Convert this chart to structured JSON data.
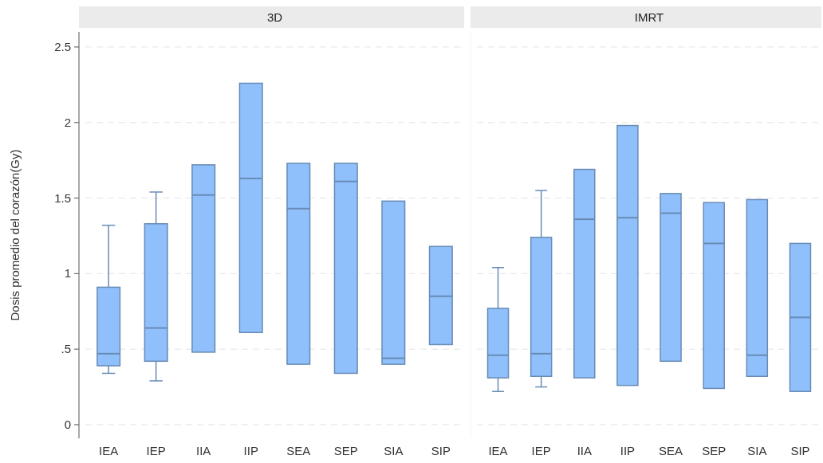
{
  "chart_data": [
    {
      "type": "box",
      "title": "3D",
      "ylabel": "Dosis promedio del corazón(Gy)",
      "categories": [
        "IEA",
        "IEP",
        "IIA",
        "IIP",
        "SEA",
        "SEP",
        "SIA",
        "SIP"
      ],
      "color": "#8fc0fb",
      "ylim": [
        -0.09,
        2.6
      ],
      "yticks": [
        0,
        {
          "value": 0.5,
          "label": ".5"
        },
        1,
        1.5,
        2,
        2.5
      ],
      "grid": "y",
      "boxes": [
        {
          "low": 0.34,
          "q1": 0.39,
          "median": 0.47,
          "q3": 0.91,
          "high": 1.32
        },
        {
          "low": 0.29,
          "q1": 0.42,
          "median": 0.64,
          "q3": 1.33,
          "high": 1.54
        },
        {
          "low": 0.48,
          "q1": 0.48,
          "median": 1.52,
          "q3": 1.72,
          "high": 1.72
        },
        {
          "low": 0.61,
          "q1": 0.61,
          "median": 1.63,
          "q3": 2.26,
          "high": 2.26
        },
        {
          "low": 0.4,
          "q1": 0.4,
          "median": 1.43,
          "q3": 1.73,
          "high": 1.73
        },
        {
          "low": 0.34,
          "q1": 0.34,
          "median": 1.61,
          "q3": 1.73,
          "high": 1.73
        },
        {
          "low": 0.4,
          "q1": 0.4,
          "median": 0.44,
          "q3": 1.48,
          "high": 1.48
        },
        {
          "low": 0.53,
          "q1": 0.53,
          "median": 0.85,
          "q3": 1.18,
          "high": 1.18
        }
      ]
    },
    {
      "type": "box",
      "title": "IMRT",
      "categories": [
        "IEA",
        "IEP",
        "IIA",
        "IIP",
        "SEA",
        "SEP",
        "SIA",
        "SIP"
      ],
      "color": "#8fc0fb",
      "ylim": [
        -0.09,
        2.6
      ],
      "yticks": [
        0,
        0.5,
        1,
        1.5,
        2,
        2.5
      ],
      "grid": "y",
      "tick_labels": "x",
      "boxes": [
        {
          "low": 0.22,
          "q1": 0.31,
          "median": 0.46,
          "q3": 0.77,
          "high": 1.04
        },
        {
          "low": 0.25,
          "q1": 0.32,
          "median": 0.47,
          "q3": 1.24,
          "high": 1.55
        },
        {
          "low": 0.31,
          "q1": 0.31,
          "median": 1.36,
          "q3": 1.69,
          "high": 1.69
        },
        {
          "low": 0.26,
          "q1": 0.26,
          "median": 1.37,
          "q3": 1.98,
          "high": 1.98
        },
        {
          "low": 0.42,
          "q1": 0.42,
          "median": 1.4,
          "q3": 1.53,
          "high": 1.53
        },
        {
          "low": 0.24,
          "q1": 0.24,
          "median": 1.2,
          "q3": 1.47,
          "high": 1.47
        },
        {
          "low": 0.32,
          "q1": 0.32,
          "median": 0.46,
          "q3": 1.49,
          "high": 1.49
        },
        {
          "low": 0.22,
          "q1": 0.22,
          "median": 0.71,
          "q3": 1.2,
          "high": 1.2
        }
      ]
    }
  ]
}
